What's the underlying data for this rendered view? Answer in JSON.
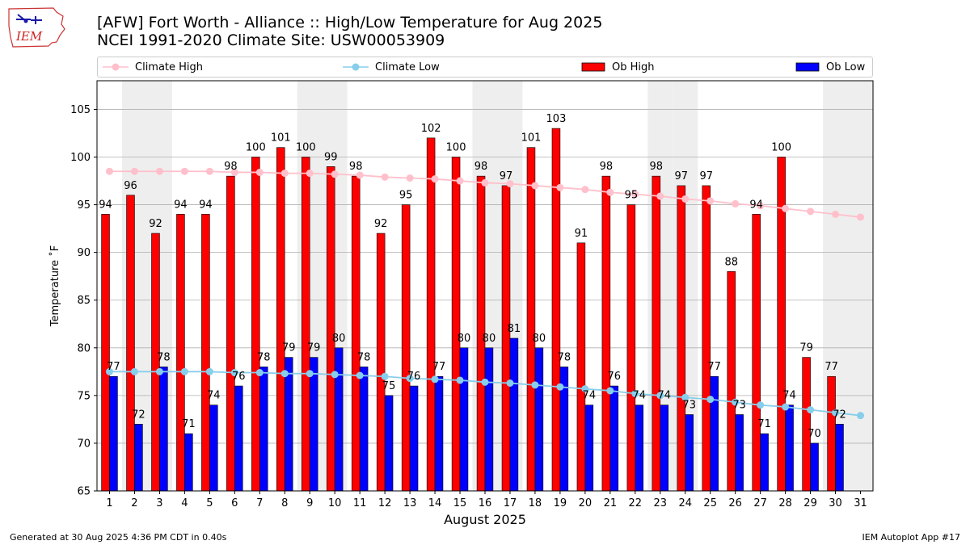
{
  "header": {
    "title_line1": "[AFW] Fort Worth - Alliance :: High/Low Temperature for Aug 2025",
    "title_line2": "NCEI 1991-2020 Climate Site: USW00053909"
  },
  "logo": {
    "text": "IEM"
  },
  "footer": {
    "generated": "Generated at 30 Aug 2025 4:36 PM CDT in 0.40s",
    "app": "IEM Autoplot App #17"
  },
  "legend": {
    "climate_high": "Climate High",
    "climate_low": "Climate Low",
    "ob_high": "Ob High",
    "ob_low": "Ob Low"
  },
  "colors": {
    "ob_high": "#ff0000",
    "ob_low": "#0000ff",
    "climate_high": "#ffc0cb",
    "climate_low": "#87ceeb",
    "weekend_shade": "#eeeeee",
    "grid": "#b0b0b0"
  },
  "chart_data": {
    "type": "bar",
    "xlabel": "August 2025",
    "ylabel": "Temperature ˚F",
    "ylim": [
      65,
      108
    ],
    "yticks": [
      65,
      70,
      75,
      80,
      85,
      90,
      95,
      100,
      105
    ],
    "grid": "horizontal",
    "legend_position": "top",
    "categories": [
      "1",
      "2",
      "3",
      "4",
      "5",
      "6",
      "7",
      "8",
      "9",
      "10",
      "11",
      "12",
      "13",
      "14",
      "15",
      "16",
      "17",
      "18",
      "19",
      "20",
      "21",
      "22",
      "23",
      "24",
      "25",
      "26",
      "27",
      "28",
      "29",
      "30",
      "31"
    ],
    "shaded_days": [
      "2",
      "3",
      "9",
      "10",
      "16",
      "17",
      "23",
      "24",
      "30",
      "31"
    ],
    "series": [
      {
        "name": "Ob High",
        "kind": "bar",
        "values": [
          94,
          96,
          92,
          94,
          94,
          98,
          100,
          101,
          100,
          99,
          98,
          92,
          95,
          102,
          100,
          98,
          97,
          101,
          103,
          91,
          98,
          95,
          98,
          97,
          97,
          88,
          94,
          100,
          79,
          77,
          null
        ],
        "labels": [
          "94",
          "96",
          "92",
          "94",
          "94",
          "98",
          "100",
          "101",
          "100",
          "99",
          "98",
          "92",
          "95",
          "102",
          "100",
          "98",
          "97",
          "101",
          "103",
          "91",
          "98",
          "95",
          "98",
          "97",
          "97",
          "88",
          "94",
          "100",
          "79",
          "77",
          ""
        ]
      },
      {
        "name": "Ob Low",
        "kind": "bar",
        "values": [
          77,
          72,
          78,
          71,
          74,
          76,
          78,
          79,
          79,
          80,
          78,
          75,
          76,
          77,
          80,
          80,
          81,
          80,
          78,
          74,
          76,
          74,
          74,
          73,
          77,
          73,
          71,
          74,
          70,
          72,
          null
        ],
        "labels": [
          "77",
          "72",
          "78",
          "71",
          "74",
          "76",
          "78",
          "79",
          "79",
          "80",
          "78",
          "75",
          "76",
          "77",
          "80",
          "80",
          "81",
          "80",
          "78",
          "74",
          "76",
          "74",
          "74",
          "73",
          "77",
          "73",
          "71",
          "74",
          "70",
          "72",
          ""
        ]
      },
      {
        "name": "Climate High",
        "kind": "line",
        "values": [
          98.5,
          98.5,
          98.5,
          98.5,
          98.5,
          98.4,
          98.4,
          98.3,
          98.3,
          98.2,
          98.1,
          97.9,
          97.8,
          97.7,
          97.5,
          97.3,
          97.2,
          97.0,
          96.8,
          96.6,
          96.3,
          96.1,
          95.9,
          95.6,
          95.4,
          95.1,
          94.9,
          94.6,
          94.3,
          94.0,
          93.7
        ]
      },
      {
        "name": "Climate Low",
        "kind": "line",
        "values": [
          77.5,
          77.5,
          77.5,
          77.5,
          77.5,
          77.4,
          77.4,
          77.3,
          77.3,
          77.2,
          77.1,
          77.0,
          76.8,
          76.7,
          76.6,
          76.4,
          76.3,
          76.1,
          75.9,
          75.7,
          75.5,
          75.2,
          75.0,
          74.8,
          74.6,
          74.3,
          74.0,
          73.8,
          73.5,
          73.2,
          72.9
        ]
      }
    ]
  }
}
